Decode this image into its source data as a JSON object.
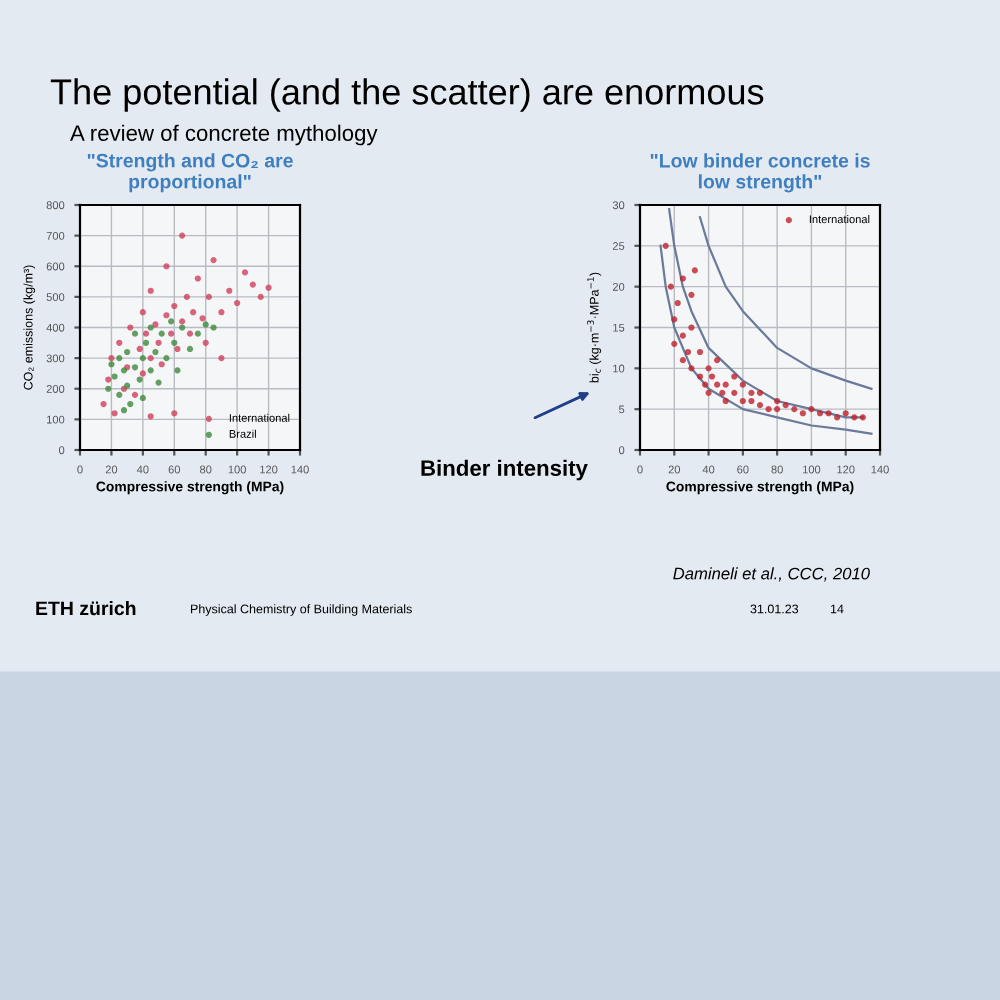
{
  "chart_data": [
    {
      "type": "scatter",
      "title": "\"Strength and CO₂ are\nproportional\"",
      "xlabel": "Compressive strength (MPa)",
      "ylabel": "CO₂ emissions (kg/m³)",
      "annotations": [
        "The potential (and the scatter) are enormous",
        "A review of concrete mythology"
      ],
      "xlim": [
        0,
        140
      ],
      "xticks": [
        0,
        20,
        40,
        60,
        80,
        100,
        120,
        140
      ],
      "ylim": [
        0,
        800
      ],
      "yticks": [
        0,
        100,
        200,
        300,
        400,
        500,
        600,
        700,
        800
      ],
      "grid": true,
      "legend": "bottom right",
      "marker": "circle",
      "series": [
        {
          "name": "International",
          "color": "#d0405a",
          "x": [
            15,
            18,
            20,
            22,
            25,
            28,
            30,
            32,
            35,
            38,
            40,
            40,
            42,
            45,
            45,
            48,
            50,
            52,
            55,
            55,
            58,
            60,
            62,
            65,
            65,
            68,
            70,
            72,
            75,
            78,
            80,
            82,
            85,
            90,
            95,
            100,
            105,
            110,
            115,
            120,
            60,
            45,
            90
          ],
          "values": [
            150,
            230,
            300,
            120,
            350,
            200,
            270,
            400,
            180,
            330,
            250,
            450,
            380,
            300,
            520,
            410,
            350,
            280,
            440,
            600,
            380,
            470,
            330,
            420,
            700,
            500,
            380,
            450,
            560,
            430,
            350,
            500,
            620,
            450,
            520,
            480,
            580,
            540,
            500,
            530,
            120,
            110,
            300
          ]
        },
        {
          "name": "Brazil",
          "color": "#3f8a3a",
          "x": [
            20,
            22,
            25,
            25,
            28,
            30,
            30,
            32,
            35,
            35,
            38,
            40,
            40,
            42,
            45,
            45,
            48,
            50,
            52,
            55,
            58,
            60,
            62,
            65,
            70,
            75,
            80,
            85,
            28,
            18
          ],
          "values": [
            280,
            240,
            300,
            180,
            260,
            320,
            210,
            150,
            270,
            380,
            230,
            300,
            170,
            350,
            260,
            400,
            320,
            220,
            380,
            300,
            420,
            350,
            260,
            400,
            330,
            380,
            410,
            400,
            130,
            200
          ]
        }
      ]
    },
    {
      "type": "scatter",
      "title": "\"Low binder concrete is\nlow strength\"",
      "xlabel": "Compressive strength (MPa)",
      "ylabel": "bi$_{c}$ (kg·m$^{−3}$·MPa$^{−1}$)",
      "annotations": [
        "Binder intensity",
        "Damineli et al., CCC, 2010",
        "ETH zürich",
        "Physical Chemistry of Building Materials",
        "31.01.23",
        "14"
      ],
      "xlim": [
        0,
        140
      ],
      "xticks": [
        0,
        20,
        40,
        60,
        80,
        100,
        120,
        140
      ],
      "ylim": [
        0,
        30
      ],
      "yticks": [
        0,
        5,
        10,
        15,
        20,
        25,
        30
      ],
      "grid": true,
      "legend": "top right",
      "marker": "circle",
      "series": [
        {
          "name": "International",
          "color": "#c0202a",
          "x": [
            15,
            18,
            20,
            20,
            22,
            25,
            25,
            28,
            30,
            30,
            32,
            35,
            35,
            38,
            40,
            40,
            42,
            45,
            45,
            48,
            50,
            50,
            55,
            55,
            60,
            60,
            65,
            65,
            70,
            70,
            75,
            80,
            80,
            85,
            90,
            95,
            100,
            105,
            110,
            115,
            120,
            125,
            130,
            30,
            25
          ],
          "values": [
            25,
            20,
            16,
            13,
            18,
            14,
            11,
            12,
            10,
            15,
            22,
            9,
            12,
            8,
            10,
            7,
            9,
            8,
            11,
            7,
            8,
            6,
            7,
            9,
            6,
            8,
            6,
            7,
            5.5,
            7,
            5,
            6,
            5,
            5.5,
            5,
            4.5,
            5,
            4.5,
            4.5,
            4,
            4.5,
            4,
            4,
            19,
            21
          ]
        },
        {
          "type": "line",
          "marker": "none",
          "color": "#6a7a9a",
          "x": [
            12,
            15,
            20,
            30,
            40,
            60,
            80,
            100,
            120,
            135
          ],
          "values": [
            25,
            20,
            15,
            10,
            7.5,
            5,
            4,
            3,
            2.5,
            2
          ]
        },
        {
          "type": "line",
          "marker": "none",
          "color": "#6a7a9a",
          "x": [
            17,
            20,
            25,
            30,
            40,
            60,
            80,
            100,
            120,
            130
          ],
          "values": [
            29.5,
            25,
            20,
            17,
            12.5,
            8.5,
            6,
            5,
            4,
            4
          ]
        },
        {
          "type": "line",
          "marker": "none",
          "color": "#6a7a9a",
          "x": [
            35,
            40,
            50,
            60,
            80,
            100,
            120,
            135
          ],
          "values": [
            28.5,
            25,
            20,
            17,
            12.5,
            10,
            8.5,
            7.5
          ]
        }
      ]
    }
  ]
}
